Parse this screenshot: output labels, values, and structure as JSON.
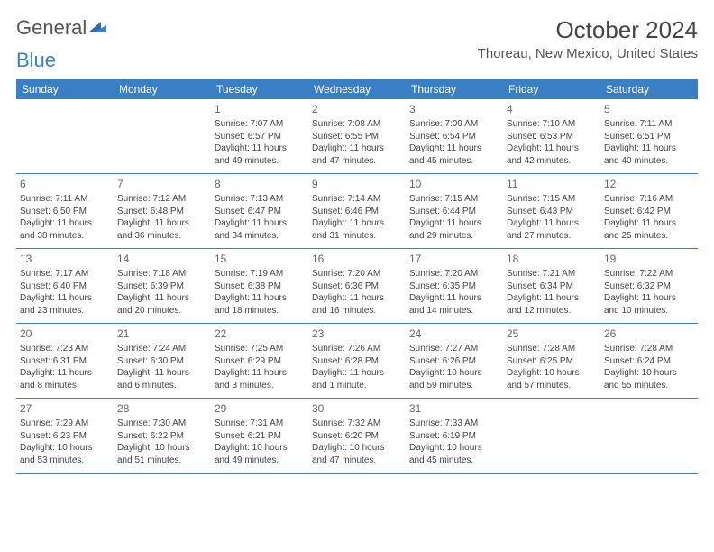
{
  "logo": {
    "word1": "General",
    "word2": "Blue"
  },
  "title": "October 2024",
  "location": "Thoreau, New Mexico, United States",
  "colors": {
    "header_bg": "#3a7fc4",
    "header_text": "#ffffff",
    "border": "#3a7fc4",
    "text": "#444444",
    "muted": "#666666"
  },
  "day_names": [
    "Sunday",
    "Monday",
    "Tuesday",
    "Wednesday",
    "Thursday",
    "Friday",
    "Saturday"
  ],
  "weeks": [
    [
      null,
      null,
      {
        "num": "1",
        "sunrise": "Sunrise: 7:07 AM",
        "sunset": "Sunset: 6:57 PM",
        "day1": "Daylight: 11 hours",
        "day2": "and 49 minutes."
      },
      {
        "num": "2",
        "sunrise": "Sunrise: 7:08 AM",
        "sunset": "Sunset: 6:55 PM",
        "day1": "Daylight: 11 hours",
        "day2": "and 47 minutes."
      },
      {
        "num": "3",
        "sunrise": "Sunrise: 7:09 AM",
        "sunset": "Sunset: 6:54 PM",
        "day1": "Daylight: 11 hours",
        "day2": "and 45 minutes."
      },
      {
        "num": "4",
        "sunrise": "Sunrise: 7:10 AM",
        "sunset": "Sunset: 6:53 PM",
        "day1": "Daylight: 11 hours",
        "day2": "and 42 minutes."
      },
      {
        "num": "5",
        "sunrise": "Sunrise: 7:11 AM",
        "sunset": "Sunset: 6:51 PM",
        "day1": "Daylight: 11 hours",
        "day2": "and 40 minutes."
      }
    ],
    [
      {
        "num": "6",
        "sunrise": "Sunrise: 7:11 AM",
        "sunset": "Sunset: 6:50 PM",
        "day1": "Daylight: 11 hours",
        "day2": "and 38 minutes."
      },
      {
        "num": "7",
        "sunrise": "Sunrise: 7:12 AM",
        "sunset": "Sunset: 6:48 PM",
        "day1": "Daylight: 11 hours",
        "day2": "and 36 minutes."
      },
      {
        "num": "8",
        "sunrise": "Sunrise: 7:13 AM",
        "sunset": "Sunset: 6:47 PM",
        "day1": "Daylight: 11 hours",
        "day2": "and 34 minutes."
      },
      {
        "num": "9",
        "sunrise": "Sunrise: 7:14 AM",
        "sunset": "Sunset: 6:46 PM",
        "day1": "Daylight: 11 hours",
        "day2": "and 31 minutes."
      },
      {
        "num": "10",
        "sunrise": "Sunrise: 7:15 AM",
        "sunset": "Sunset: 6:44 PM",
        "day1": "Daylight: 11 hours",
        "day2": "and 29 minutes."
      },
      {
        "num": "11",
        "sunrise": "Sunrise: 7:15 AM",
        "sunset": "Sunset: 6:43 PM",
        "day1": "Daylight: 11 hours",
        "day2": "and 27 minutes."
      },
      {
        "num": "12",
        "sunrise": "Sunrise: 7:16 AM",
        "sunset": "Sunset: 6:42 PM",
        "day1": "Daylight: 11 hours",
        "day2": "and 25 minutes."
      }
    ],
    [
      {
        "num": "13",
        "sunrise": "Sunrise: 7:17 AM",
        "sunset": "Sunset: 6:40 PM",
        "day1": "Daylight: 11 hours",
        "day2": "and 23 minutes."
      },
      {
        "num": "14",
        "sunrise": "Sunrise: 7:18 AM",
        "sunset": "Sunset: 6:39 PM",
        "day1": "Daylight: 11 hours",
        "day2": "and 20 minutes."
      },
      {
        "num": "15",
        "sunrise": "Sunrise: 7:19 AM",
        "sunset": "Sunset: 6:38 PM",
        "day1": "Daylight: 11 hours",
        "day2": "and 18 minutes."
      },
      {
        "num": "16",
        "sunrise": "Sunrise: 7:20 AM",
        "sunset": "Sunset: 6:36 PM",
        "day1": "Daylight: 11 hours",
        "day2": "and 16 minutes."
      },
      {
        "num": "17",
        "sunrise": "Sunrise: 7:20 AM",
        "sunset": "Sunset: 6:35 PM",
        "day1": "Daylight: 11 hours",
        "day2": "and 14 minutes."
      },
      {
        "num": "18",
        "sunrise": "Sunrise: 7:21 AM",
        "sunset": "Sunset: 6:34 PM",
        "day1": "Daylight: 11 hours",
        "day2": "and 12 minutes."
      },
      {
        "num": "19",
        "sunrise": "Sunrise: 7:22 AM",
        "sunset": "Sunset: 6:32 PM",
        "day1": "Daylight: 11 hours",
        "day2": "and 10 minutes."
      }
    ],
    [
      {
        "num": "20",
        "sunrise": "Sunrise: 7:23 AM",
        "sunset": "Sunset: 6:31 PM",
        "day1": "Daylight: 11 hours",
        "day2": "and 8 minutes."
      },
      {
        "num": "21",
        "sunrise": "Sunrise: 7:24 AM",
        "sunset": "Sunset: 6:30 PM",
        "day1": "Daylight: 11 hours",
        "day2": "and 6 minutes."
      },
      {
        "num": "22",
        "sunrise": "Sunrise: 7:25 AM",
        "sunset": "Sunset: 6:29 PM",
        "day1": "Daylight: 11 hours",
        "day2": "and 3 minutes."
      },
      {
        "num": "23",
        "sunrise": "Sunrise: 7:26 AM",
        "sunset": "Sunset: 6:28 PM",
        "day1": "Daylight: 11 hours",
        "day2": "and 1 minute."
      },
      {
        "num": "24",
        "sunrise": "Sunrise: 7:27 AM",
        "sunset": "Sunset: 6:26 PM",
        "day1": "Daylight: 10 hours",
        "day2": "and 59 minutes."
      },
      {
        "num": "25",
        "sunrise": "Sunrise: 7:28 AM",
        "sunset": "Sunset: 6:25 PM",
        "day1": "Daylight: 10 hours",
        "day2": "and 57 minutes."
      },
      {
        "num": "26",
        "sunrise": "Sunrise: 7:28 AM",
        "sunset": "Sunset: 6:24 PM",
        "day1": "Daylight: 10 hours",
        "day2": "and 55 minutes."
      }
    ],
    [
      {
        "num": "27",
        "sunrise": "Sunrise: 7:29 AM",
        "sunset": "Sunset: 6:23 PM",
        "day1": "Daylight: 10 hours",
        "day2": "and 53 minutes."
      },
      {
        "num": "28",
        "sunrise": "Sunrise: 7:30 AM",
        "sunset": "Sunset: 6:22 PM",
        "day1": "Daylight: 10 hours",
        "day2": "and 51 minutes."
      },
      {
        "num": "29",
        "sunrise": "Sunrise: 7:31 AM",
        "sunset": "Sunset: 6:21 PM",
        "day1": "Daylight: 10 hours",
        "day2": "and 49 minutes."
      },
      {
        "num": "30",
        "sunrise": "Sunrise: 7:32 AM",
        "sunset": "Sunset: 6:20 PM",
        "day1": "Daylight: 10 hours",
        "day2": "and 47 minutes."
      },
      {
        "num": "31",
        "sunrise": "Sunrise: 7:33 AM",
        "sunset": "Sunset: 6:19 PM",
        "day1": "Daylight: 10 hours",
        "day2": "and 45 minutes."
      },
      null,
      null
    ]
  ]
}
